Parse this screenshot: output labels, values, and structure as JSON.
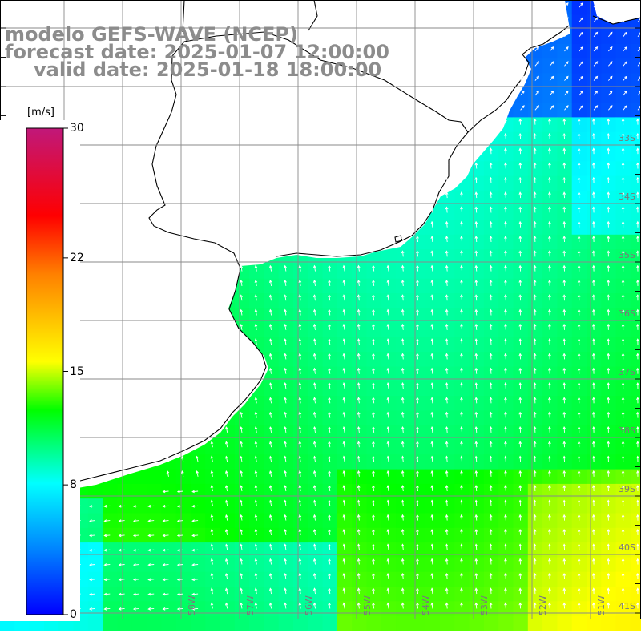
{
  "title": {
    "model": "modelo GEFS-WAVE (NCEP)",
    "forecast": "forecast date: 2025-01-07 12:00:00",
    "valid": "valid date: 2025-01-18 18:00:00"
  },
  "colorbar": {
    "unit": "[m/s]",
    "min": 0,
    "max": 30,
    "ticks": [
      {
        "label": "30",
        "value": 30
      },
      {
        "label": "22",
        "value": 22
      },
      {
        "label": "15",
        "value": 15
      },
      {
        "label": "8",
        "value": 8
      },
      {
        "label": "0",
        "value": 0
      }
    ],
    "colors": [
      "#0000ff",
      "#0080ff",
      "#00ffff",
      "#00ff00",
      "#ffff00",
      "#ff8000",
      "#ff0000",
      "#c0187a"
    ]
  },
  "map": {
    "projection": "lat-lon",
    "lon_range": [
      -60,
      -51
    ],
    "lat_range": [
      -41.5,
      -31.5
    ],
    "parameter": "wind speed",
    "grid_lines": true,
    "vector_arrows": true,
    "land_color": "#ffffff",
    "coastline_color": "#000000",
    "lat_labels": [
      "33S",
      "34S",
      "35S",
      "36S",
      "37S",
      "38S",
      "39S",
      "40S",
      "41S"
    ],
    "lon_labels": [
      "58W",
      "57W",
      "56W",
      "55W",
      "54W",
      "53W",
      "52W",
      "51W"
    ]
  }
}
